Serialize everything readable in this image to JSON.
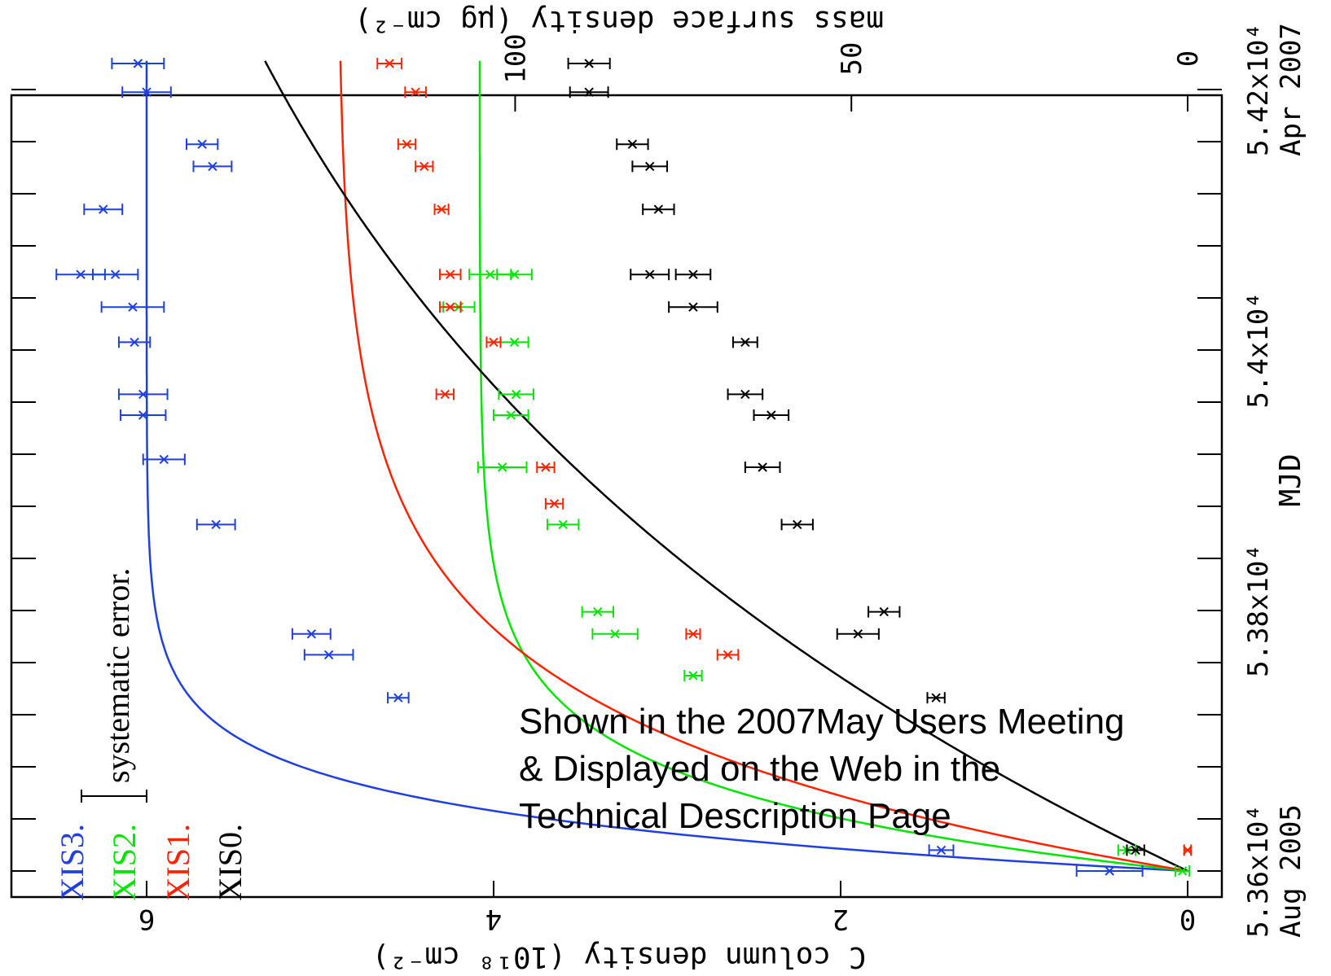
{
  "chart_data": {
    "type": "scatter",
    "title": "",
    "xlabel": "MJD",
    "ylabel": "C column density (10¹⁸ cm⁻²)",
    "y2label": "mass surface density (μg cm⁻²)",
    "xlim": [
      53580,
      54240
    ],
    "ylim": [
      0,
      7.2
    ],
    "y2ticks": [
      "0",
      "50",
      "100"
    ],
    "y2tick_values": [
      0,
      50,
      100
    ],
    "xtick_labels": [
      {
        "value": 53600,
        "text": "5.36x10⁴",
        "date": "Aug 2005"
      },
      {
        "value": 53800,
        "text": "5.38x10⁴",
        "date": ""
      },
      {
        "value": 54000,
        "text": "5.4x10⁴",
        "date": ""
      },
      {
        "value": 54200,
        "text": "5.42x10⁴",
        "date": "Apr 2007"
      }
    ],
    "yticks": [
      "0",
      "2",
      "4",
      "6"
    ],
    "ytick_values": [
      0,
      2,
      4,
      6
    ],
    "legend": {
      "systematic_label": "systematic error."
    },
    "series": [
      {
        "name": "XIS3",
        "color": "#1f3fe0",
        "fit": {
          "A": 6.0,
          "tau": 42,
          "t0": 53600
        },
        "points": [
          {
            "x": 53600,
            "y": 0.45,
            "err": 0.19
          },
          {
            "x": 53616,
            "y": 1.42,
            "err": 0.07
          },
          {
            "x": 53733,
            "y": 4.55,
            "err": 0.06
          },
          {
            "x": 53766,
            "y": 4.95,
            "err": 0.14
          },
          {
            "x": 53782,
            "y": 5.05,
            "err": 0.11
          },
          {
            "x": 53866,
            "y": 5.6,
            "err": 0.11
          },
          {
            "x": 53916,
            "y": 5.9,
            "err": 0.12
          },
          {
            "x": 53950,
            "y": 6.02,
            "err": 0.13
          },
          {
            "x": 53966,
            "y": 6.02,
            "err": 0.14
          },
          {
            "x": 54006,
            "y": 6.07,
            "err": 0.09
          },
          {
            "x": 54033,
            "y": 6.08,
            "err": 0.18
          },
          {
            "x": 54058,
            "y": 6.18,
            "err": 0.13
          },
          {
            "x": 54058,
            "y": 6.38,
            "err": 0.14
          },
          {
            "x": 54108,
            "y": 6.25,
            "err": 0.11
          },
          {
            "x": 54141,
            "y": 5.62,
            "err": 0.11
          },
          {
            "x": 54158,
            "y": 5.68,
            "err": 0.09
          },
          {
            "x": 54198,
            "y": 6.0,
            "err": 0.14
          },
          {
            "x": 54220,
            "y": 6.05,
            "err": 0.15
          }
        ]
      },
      {
        "name": "XIS2",
        "color": "#00e600",
        "fit": {
          "A": 4.08,
          "tau": 60,
          "t0": 53600
        },
        "points": [
          {
            "x": 53600,
            "y": 0.03,
            "err": 0.04
          },
          {
            "x": 53616,
            "y": 0.35,
            "err": 0.05
          },
          {
            "x": 53750,
            "y": 2.85,
            "err": 0.05
          },
          {
            "x": 53782,
            "y": 3.3,
            "err": 0.13
          },
          {
            "x": 53799,
            "y": 3.4,
            "err": 0.09
          },
          {
            "x": 53866,
            "y": 3.6,
            "err": 0.09
          },
          {
            "x": 53910,
            "y": 3.95,
            "err": 0.14
          },
          {
            "x": 53950,
            "y": 3.9,
            "err": 0.1
          },
          {
            "x": 53966,
            "y": 3.87,
            "err": 0.1
          },
          {
            "x": 54006,
            "y": 3.88,
            "err": 0.08
          },
          {
            "x": 54033,
            "y": 4.2,
            "err": 0.09
          },
          {
            "x": 54058,
            "y": 3.88,
            "err": 0.1
          },
          {
            "x": 54058,
            "y": 4.02,
            "err": 0.12
          }
        ]
      },
      {
        "name": "XIS1",
        "color": "#ff2200",
        "fit": {
          "A": 4.9,
          "tau": 110,
          "t0": 53600
        },
        "points": [
          {
            "x": 53616,
            "y": 0.0,
            "err": 0.02
          },
          {
            "x": 53766,
            "y": 2.65,
            "err": 0.06
          },
          {
            "x": 53782,
            "y": 2.85,
            "err": 0.04
          },
          {
            "x": 53882,
            "y": 3.65,
            "err": 0.05
          },
          {
            "x": 53910,
            "y": 3.7,
            "err": 0.05
          },
          {
            "x": 53966,
            "y": 4.28,
            "err": 0.05
          },
          {
            "x": 54006,
            "y": 4.0,
            "err": 0.04
          },
          {
            "x": 54033,
            "y": 4.25,
            "err": 0.06
          },
          {
            "x": 54058,
            "y": 4.25,
            "err": 0.06
          },
          {
            "x": 54108,
            "y": 4.3,
            "err": 0.04
          },
          {
            "x": 54141,
            "y": 4.4,
            "err": 0.05
          },
          {
            "x": 54158,
            "y": 4.5,
            "err": 0.05
          },
          {
            "x": 54198,
            "y": 4.45,
            "err": 0.06
          },
          {
            "x": 54220,
            "y": 4.6,
            "err": 0.07
          }
        ]
      },
      {
        "name": "XIS0",
        "color": "#000000",
        "fit": {
          "A": 7.1,
          "tau": 450,
          "t0": 53600
        },
        "points": [
          {
            "x": 53616,
            "y": 0.3,
            "err": 0.05
          },
          {
            "x": 53733,
            "y": 1.45,
            "err": 0.05
          },
          {
            "x": 53782,
            "y": 1.9,
            "err": 0.12
          },
          {
            "x": 53799,
            "y": 1.75,
            "err": 0.09
          },
          {
            "x": 53866,
            "y": 2.25,
            "err": 0.09
          },
          {
            "x": 53910,
            "y": 2.45,
            "err": 0.1
          },
          {
            "x": 53966,
            "y": 2.55,
            "err": 0.1
          },
          {
            "x": 53950,
            "y": 2.4,
            "err": 0.1
          },
          {
            "x": 54006,
            "y": 2.55,
            "err": 0.07
          },
          {
            "x": 54033,
            "y": 2.85,
            "err": 0.14
          },
          {
            "x": 54058,
            "y": 2.85,
            "err": 0.1
          },
          {
            "x": 54058,
            "y": 3.1,
            "err": 0.11
          },
          {
            "x": 54108,
            "y": 3.05,
            "err": 0.09
          },
          {
            "x": 54141,
            "y": 3.1,
            "err": 0.1
          },
          {
            "x": 54158,
            "y": 3.2,
            "err": 0.09
          },
          {
            "x": 54198,
            "y": 3.45,
            "err": 0.11
          },
          {
            "x": 54220,
            "y": 3.45,
            "err": 0.12
          }
        ]
      }
    ]
  },
  "annotation": {
    "line1": "Shown in the 2007May Users Meeting",
    "line2": "& Displayed on the Web in the",
    "line3": "Technical Description Page"
  }
}
